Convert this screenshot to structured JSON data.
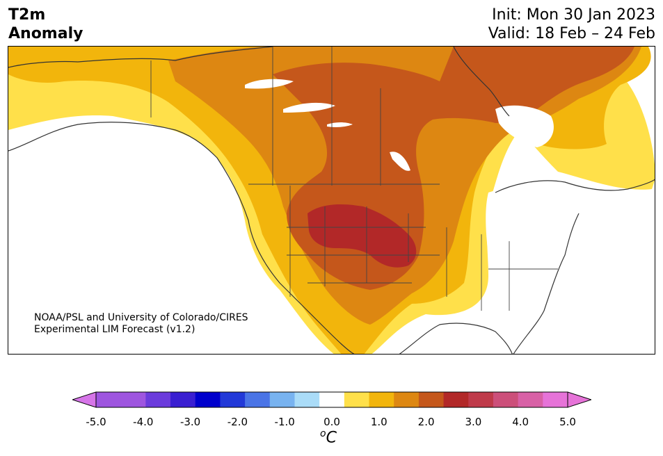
{
  "header": {
    "title_line1": "T2m",
    "title_line2": "Anomaly",
    "init_label": "Init: Mon 30 Jan 2023",
    "valid_label": "Valid: 18 Feb – 24 Feb"
  },
  "map": {
    "region": "North America",
    "credit_line1": "NOAA/PSL and University of Colorado/CIRES",
    "credit_line2": "Experimental LIM Forecast (v1.2)"
  },
  "colorbar": {
    "unit_base": "C",
    "unit_sup": "o",
    "tick_labels": [
      "-5.0",
      "-4.0",
      "-3.0",
      "-2.0",
      "-1.0",
      "0.0",
      "1.0",
      "2.0",
      "3.0",
      "4.0",
      "5.0"
    ],
    "bins": [
      {
        "range": "< -5.0",
        "color": "#d675e8"
      },
      {
        "range": "-5.0 to -4.5",
        "color": "#9e55df"
      },
      {
        "range": "-4.5 to -4.0",
        "color": "#9e55df"
      },
      {
        "range": "-4.0 to -3.5",
        "color": "#6b3bdc"
      },
      {
        "range": "-3.5 to -3.0",
        "color": "#3a1fd1"
      },
      {
        "range": "-3.0 to -2.5",
        "color": "#0000cc"
      },
      {
        "range": "-2.5 to -2.0",
        "color": "#2239d8"
      },
      {
        "range": "-2.0 to -1.5",
        "color": "#4a74e6"
      },
      {
        "range": "-1.5 to -1.0",
        "color": "#78b3f0"
      },
      {
        "range": "-1.0 to -0.5",
        "color": "#aadcf8"
      },
      {
        "range": "-0.5 to 0.5",
        "color": "#ffffff"
      },
      {
        "range": "0.5 to 1.0",
        "color": "#ffe04a"
      },
      {
        "range": "1.0 to 1.5",
        "color": "#f2b50c"
      },
      {
        "range": "1.5 to 2.0",
        "color": "#dd8712"
      },
      {
        "range": "2.0 to 2.5",
        "color": "#c5571b"
      },
      {
        "range": "2.5 to 3.0",
        "color": "#b22828"
      },
      {
        "range": "3.0 to 3.5",
        "color": "#bf3a4a"
      },
      {
        "range": "3.5 to 4.0",
        "color": "#cc4f7a"
      },
      {
        "range": "4.0 to 4.5",
        "color": "#d861a6"
      },
      {
        "range": "4.5 to 5.0",
        "color": "#e673d8"
      },
      {
        "range": "> 5.0",
        "color": "#e673d8"
      }
    ]
  }
}
